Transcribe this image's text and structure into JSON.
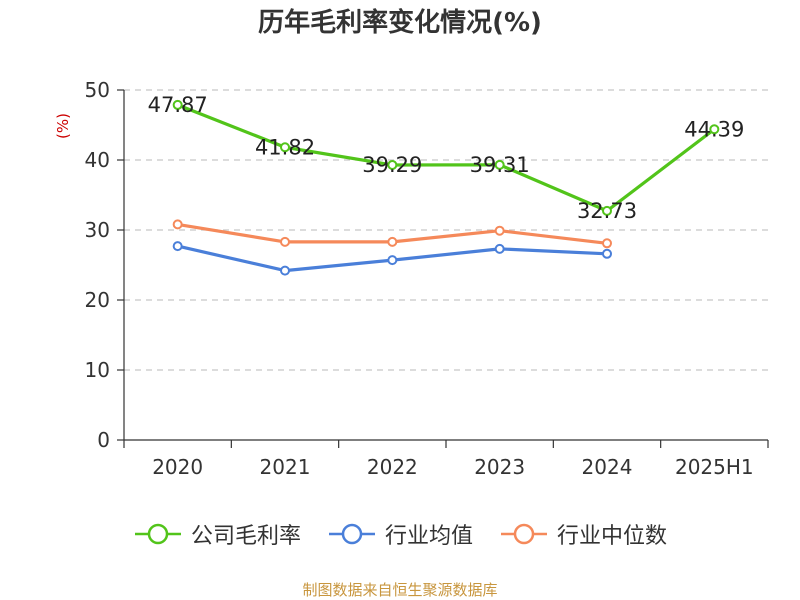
{
  "chart_data": {
    "type": "line",
    "title": "历年毛利率变化情况(%)",
    "ylabel": "(%)",
    "xlabel": "",
    "categories": [
      "2020",
      "2021",
      "2022",
      "2023",
      "2024",
      "2025H1"
    ],
    "ylim": [
      0,
      50
    ],
    "yticks": [
      0,
      10,
      20,
      30,
      40,
      50
    ],
    "grid": true,
    "legend_position": "bottom",
    "series": [
      {
        "name": "公司毛利率",
        "color": "#52c41a",
        "values": [
          47.87,
          41.82,
          39.29,
          39.31,
          32.73,
          44.39
        ],
        "labels": [
          "47.87",
          "41.82",
          "39.29",
          "39.31",
          "32.73",
          "44.39"
        ]
      },
      {
        "name": "行业均值",
        "color": "#4a7fd9",
        "values": [
          27.7,
          24.2,
          25.7,
          27.3,
          26.6,
          null
        ]
      },
      {
        "name": "行业中位数",
        "color": "#f5895a",
        "values": [
          30.8,
          28.3,
          28.3,
          29.9,
          28.1,
          null
        ]
      }
    ]
  },
  "source": "制图数据来自恒生聚源数据库"
}
